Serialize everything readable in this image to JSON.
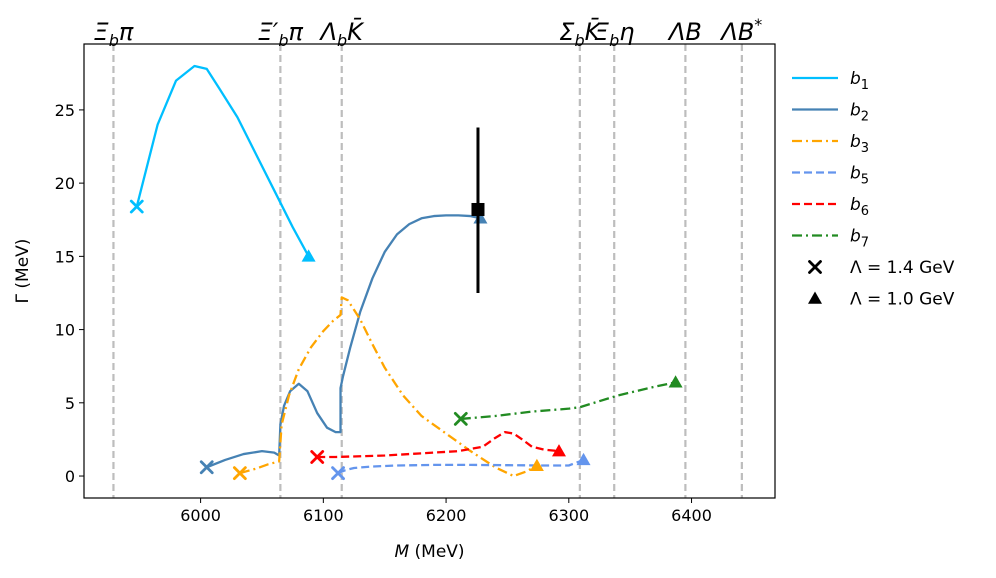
{
  "chart_data": {
    "type": "line",
    "xlabel_var": "M",
    "xlabel_unit": " (MeV)",
    "ylabel": "Γ (MeV)",
    "xlim": [
      5905,
      6468
    ],
    "ylim": [
      -1.5,
      29.5
    ],
    "xticks": [
      6000,
      6100,
      6200,
      6300,
      6400
    ],
    "yticks": [
      0,
      5,
      10,
      15,
      20,
      25
    ],
    "thresholds": [
      {
        "label_base": "Ξ",
        "label_sub": "b",
        "label_rest": "π",
        "x": 5929
      },
      {
        "label_base": "Ξ′",
        "label_sub": "b",
        "label_rest": "π",
        "x": 6065
      },
      {
        "label_base": "Λ",
        "label_sub": "b",
        "label_rest": "K̄",
        "x": 6115
      },
      {
        "label_base": "Σ",
        "label_sub": "b",
        "label_rest": "K̄",
        "x": 6309
      },
      {
        "label_base": "Ξ",
        "label_sub": "b",
        "label_rest": "η",
        "x": 6337
      },
      {
        "label_base": "ΛB",
        "label_sub": "",
        "label_rest": "",
        "x": 6395
      },
      {
        "label_base": "ΛB",
        "label_sub": "",
        "label_rest": "*",
        "x": 6441
      }
    ],
    "series": [
      {
        "name": "b",
        "sub": "1",
        "color": "#00bfff",
        "dash": "solid",
        "x": [
          5948,
          5965,
          5980,
          5995,
          6005,
          6015,
          6030,
          6045,
          6060,
          6075,
          6088
        ],
        "y": [
          18.4,
          24.0,
          27.0,
          28.0,
          27.8,
          26.5,
          24.5,
          22.0,
          19.5,
          17.0,
          15.0
        ],
        "x_marker": [
          5948,
          18.4
        ],
        "tri_marker": [
          6088,
          15.0
        ]
      },
      {
        "name": "b",
        "sub": "2",
        "color": "#4682b4",
        "dash": "solid",
        "x": [
          6005,
          6020,
          6035,
          6050,
          6060,
          6064,
          6065,
          6068,
          6073,
          6080,
          6087,
          6095,
          6103,
          6110,
          6114,
          6114,
          6116,
          6122,
          6130,
          6140,
          6150,
          6160,
          6170,
          6180,
          6190,
          6200,
          6210,
          6220,
          6228
        ],
        "y": [
          0.6,
          1.1,
          1.5,
          1.7,
          1.6,
          1.4,
          3.5,
          4.8,
          5.8,
          6.3,
          5.8,
          4.3,
          3.3,
          3.0,
          3.0,
          6.0,
          6.8,
          8.8,
          11.2,
          13.5,
          15.3,
          16.5,
          17.2,
          17.6,
          17.75,
          17.8,
          17.8,
          17.75,
          17.6
        ],
        "x_marker": [
          6005,
          0.6
        ],
        "tri_marker": [
          6228,
          17.6
        ]
      },
      {
        "name": "b",
        "sub": "3",
        "color": "#ffa500",
        "dash": "dashdot",
        "x": [
          6032,
          6045,
          6055,
          6064,
          6066,
          6072,
          6080,
          6090,
          6100,
          6108,
          6114,
          6115,
          6120,
          6130,
          6140,
          6150,
          6165,
          6180,
          6200,
          6220,
          6240,
          6255,
          6265,
          6274
        ],
        "y": [
          0.2,
          0.5,
          0.8,
          1.0,
          3.5,
          5.5,
          7.3,
          8.8,
          9.9,
          10.6,
          11.0,
          12.2,
          12.0,
          10.7,
          9.0,
          7.4,
          5.5,
          4.1,
          2.9,
          1.7,
          0.6,
          0.0,
          0.3,
          0.7
        ],
        "x_marker": [
          6032,
          0.2
        ],
        "tri_marker": [
          6274,
          0.7
        ]
      },
      {
        "name": "b",
        "sub": "5",
        "color": "#6495ed",
        "dash": "dashed",
        "x": [
          6112,
          6118,
          6125,
          6140,
          6160,
          6190,
          6220,
          6250,
          6280,
          6300,
          6312
        ],
        "y": [
          0.2,
          0.4,
          0.55,
          0.65,
          0.72,
          0.76,
          0.76,
          0.74,
          0.72,
          0.72,
          1.1
        ],
        "x_marker": [
          6112,
          0.2
        ],
        "tri_marker": [
          6312,
          1.1
        ]
      },
      {
        "name": "b",
        "sub": "6",
        "color": "#ff0000",
        "dash": "dashed",
        "x": [
          6095,
          6110,
          6130,
          6150,
          6170,
          6190,
          6210,
          6230,
          6240,
          6248,
          6255,
          6262,
          6270,
          6280,
          6292
        ],
        "y": [
          1.3,
          1.3,
          1.35,
          1.4,
          1.5,
          1.6,
          1.7,
          2.0,
          2.6,
          3.0,
          2.9,
          2.5,
          2.0,
          1.8,
          1.7
        ],
        "x_marker": [
          6095,
          1.3
        ],
        "tri_marker": [
          6292,
          1.7
        ]
      },
      {
        "name": "b",
        "sub": "7",
        "color": "#228b22",
        "dash": "dashdot",
        "x": [
          6212,
          6240,
          6270,
          6300,
          6309,
          6340,
          6370,
          6387
        ],
        "y": [
          3.9,
          4.1,
          4.4,
          4.6,
          4.7,
          5.5,
          6.1,
          6.4
        ],
        "x_marker": [
          6212,
          3.9
        ],
        "tri_marker": [
          6387,
          6.4
        ]
      }
    ],
    "data_point": {
      "x": 6226,
      "y": 18.2,
      "yerr_low": 12.5,
      "yerr_high": 23.8,
      "marker": "square",
      "color": "#000000"
    },
    "marker_legend": [
      {
        "symbol": "x",
        "label": "Λ = 1.4 GeV"
      },
      {
        "symbol": "triangle",
        "label": "Λ = 1.0 GeV"
      }
    ],
    "legend_position": "right"
  }
}
